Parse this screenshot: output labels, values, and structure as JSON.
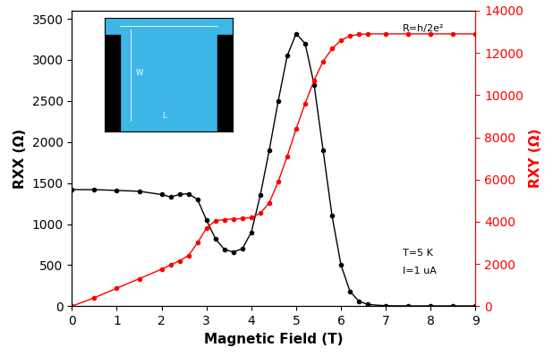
{
  "chart_data": {
    "type": "line",
    "xlabel": "Magnetic Field (T)",
    "ylabel": "RXX (Ω)",
    "y2label": "RXY (Ω)",
    "x": [
      0,
      0.5,
      1,
      1.5,
      2,
      2.2,
      2.4,
      2.6,
      2.8,
      3.0,
      3.2,
      3.4,
      3.6,
      3.8,
      4.0,
      4.2,
      4.4,
      4.6,
      4.8,
      5.0,
      5.2,
      5.4,
      5.6,
      5.8,
      6.0,
      6.2,
      6.4,
      6.6,
      7,
      7.5,
      8,
      8.5,
      9
    ],
    "series": [
      {
        "color": "#000000",
        "marker": "o",
        "line_style": "solid",
        "values": [
          1420,
          1420,
          1410,
          1400,
          1360,
          1330,
          1360,
          1370,
          1300,
          1050,
          820,
          690,
          660,
          700,
          900,
          1350,
          1900,
          2500,
          3050,
          3320,
          3200,
          2700,
          1900,
          1100,
          500,
          180,
          60,
          20,
          5,
          3,
          3,
          3,
          3
        ]
      },
      {
        "color": "#ff0000",
        "marker": "o",
        "line_style": "solid",
        "axis": "y2",
        "values": [
          0,
          400,
          850,
          1300,
          1750,
          1950,
          2150,
          2400,
          3000,
          3700,
          4050,
          4100,
          4130,
          4150,
          4200,
          4400,
          4900,
          5900,
          7100,
          8400,
          9600,
          10700,
          11600,
          12200,
          12600,
          12800,
          12880,
          12900,
          12900,
          12900,
          12900,
          12900,
          12900
        ]
      }
    ],
    "xlim": [
      0,
      9
    ],
    "xticks": [
      0,
      1,
      2,
      3,
      4,
      5,
      6,
      7,
      8,
      9
    ],
    "ylim": [
      0,
      3600
    ],
    "yticks": [
      0,
      500,
      1000,
      1500,
      2000,
      2500,
      3000,
      3500
    ],
    "y2lim": [
      0,
      14000
    ],
    "y2ticks": [
      0,
      2000,
      4000,
      6000,
      8000,
      10000,
      12000,
      14000
    ],
    "annotations": [
      "R=h/2e²",
      "T=5 K",
      "I=1 uA"
    ],
    "inset_labels": [
      "W",
      "L"
    ],
    "grid": false
  }
}
